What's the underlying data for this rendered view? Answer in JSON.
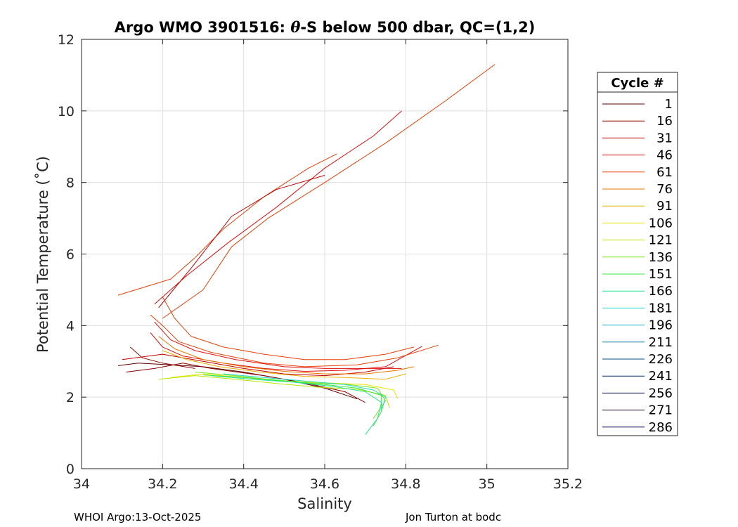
{
  "chart_data": {
    "type": "line",
    "title_prefix": "Argo WMO 3901516: ",
    "title_theta": "θ",
    "title_suffix": "-S below 500 dbar,  QC=(1,2)",
    "xlabel": "Salinity",
    "ylabel": "Potential Temperature (˚C)",
    "xlim": [
      34,
      35.2
    ],
    "ylim": [
      0,
      12
    ],
    "xticks": [
      "34",
      "34.2",
      "34.4",
      "34.6",
      "34.8",
      "35",
      "35.2"
    ],
    "yticks": [
      "0",
      "2",
      "4",
      "6",
      "8",
      "10",
      "12"
    ],
    "grid": true,
    "legend_placement": "outside-right",
    "legend": {
      "title": "Cycle #",
      "entries": [
        {
          "label": "1",
          "color": "#5a0000"
        },
        {
          "label": "16",
          "color": "#8c0000"
        },
        {
          "label": "31",
          "color": "#bf0000"
        },
        {
          "label": "46",
          "color": "#e01010"
        },
        {
          "label": "61",
          "color": "#e8400a"
        },
        {
          "label": "76",
          "color": "#e87800"
        },
        {
          "label": "91",
          "color": "#e8b000"
        },
        {
          "label": "106",
          "color": "#e6e600"
        },
        {
          "label": "121",
          "color": "#b8e600"
        },
        {
          "label": "136",
          "color": "#80e620"
        },
        {
          "label": "151",
          "color": "#40e640"
        },
        {
          "label": "166",
          "color": "#20e690"
        },
        {
          "label": "181",
          "color": "#20d8c0"
        },
        {
          "label": "196",
          "color": "#10b0c8"
        },
        {
          "label": "211",
          "color": "#0a80a8"
        },
        {
          "label": "226",
          "color": "#0a5080"
        },
        {
          "label": "241",
          "color": "#0a2a60"
        },
        {
          "label": "256",
          "color": "#0a0a40"
        },
        {
          "label": "271",
          "color": "#2a0020"
        },
        {
          "label": "286",
          "color": "#000060"
        }
      ]
    },
    "series": [
      {
        "color": "#5a0000",
        "points": [
          [
            34.09,
            2.88
          ],
          [
            34.14,
            2.95
          ],
          [
            34.22,
            2.9
          ],
          [
            34.3,
            2.85
          ],
          [
            34.4,
            2.7
          ],
          [
            34.5,
            2.5
          ],
          [
            34.6,
            2.25
          ],
          [
            34.68,
            1.95
          ]
        ]
      },
      {
        "color": "#8c0000",
        "points": [
          [
            34.11,
            2.7
          ],
          [
            34.18,
            2.8
          ],
          [
            34.25,
            2.95
          ],
          [
            34.32,
            2.8
          ],
          [
            34.45,
            2.6
          ],
          [
            34.55,
            2.4
          ],
          [
            34.65,
            2.15
          ],
          [
            34.7,
            1.85
          ]
        ]
      },
      {
        "color": "#8c0000",
        "points": [
          [
            34.12,
            3.4
          ],
          [
            34.15,
            3.1
          ],
          [
            34.2,
            2.95
          ],
          [
            34.28,
            2.8
          ]
        ]
      },
      {
        "color": "#bf0000",
        "points": [
          [
            34.1,
            3.05
          ],
          [
            34.2,
            3.2
          ],
          [
            34.3,
            3.0
          ],
          [
            34.4,
            2.8
          ],
          [
            34.5,
            2.65
          ],
          [
            34.6,
            2.6
          ],
          [
            34.7,
            2.7
          ],
          [
            34.77,
            2.85
          ]
        ]
      },
      {
        "color": "#e01010",
        "points": [
          [
            34.17,
            3.8
          ],
          [
            34.2,
            3.4
          ],
          [
            34.25,
            3.15
          ],
          [
            34.35,
            2.95
          ],
          [
            34.45,
            2.8
          ],
          [
            34.55,
            2.72
          ],
          [
            34.65,
            2.75
          ],
          [
            34.75,
            2.85
          ],
          [
            34.84,
            3.42
          ]
        ]
      },
      {
        "color": "#e01010",
        "points": [
          [
            34.18,
            4.1
          ],
          [
            34.22,
            3.6
          ],
          [
            34.28,
            3.3
          ],
          [
            34.38,
            3.05
          ],
          [
            34.5,
            2.85
          ],
          [
            34.6,
            2.8
          ],
          [
            34.7,
            2.8
          ],
          [
            34.79,
            2.8
          ]
        ]
      },
      {
        "color": "#e8400a",
        "points": [
          [
            34.17,
            4.3
          ],
          [
            34.2,
            4.0
          ],
          [
            34.24,
            3.55
          ],
          [
            34.32,
            3.25
          ],
          [
            34.45,
            2.95
          ],
          [
            34.55,
            2.85
          ],
          [
            34.68,
            2.9
          ],
          [
            34.78,
            3.1
          ],
          [
            34.88,
            3.45
          ]
        ]
      },
      {
        "color": "#e8400a",
        "points": [
          [
            34.2,
            4.8
          ],
          [
            34.23,
            4.2
          ],
          [
            34.27,
            3.7
          ],
          [
            34.35,
            3.4
          ],
          [
            34.45,
            3.2
          ],
          [
            34.55,
            3.05
          ],
          [
            34.65,
            3.05
          ],
          [
            34.75,
            3.2
          ],
          [
            34.82,
            3.4
          ]
        ]
      },
      {
        "color": "#e87800",
        "points": [
          [
            34.19,
            3.7
          ],
          [
            34.23,
            3.35
          ],
          [
            34.3,
            3.05
          ],
          [
            34.4,
            2.85
          ],
          [
            34.5,
            2.72
          ],
          [
            34.6,
            2.65
          ],
          [
            34.7,
            2.65
          ],
          [
            34.78,
            2.75
          ],
          [
            34.82,
            2.85
          ]
        ]
      },
      {
        "color": "#e8b000",
        "points": [
          [
            34.2,
            3.3
          ],
          [
            34.26,
            3.05
          ],
          [
            34.34,
            2.85
          ],
          [
            34.44,
            2.7
          ],
          [
            34.55,
            2.58
          ],
          [
            34.65,
            2.55
          ],
          [
            34.75,
            2.5
          ],
          [
            34.8,
            2.65
          ]
        ]
      },
      {
        "color": "#e6e600",
        "points": [
          [
            34.22,
            2.55
          ],
          [
            34.3,
            2.65
          ],
          [
            34.4,
            2.55
          ],
          [
            34.5,
            2.45
          ],
          [
            34.6,
            2.4
          ],
          [
            34.7,
            2.35
          ],
          [
            34.77,
            2.2
          ],
          [
            34.78,
            1.95
          ]
        ]
      },
      {
        "color": "#b8e600",
        "points": [
          [
            34.19,
            2.5
          ],
          [
            34.28,
            2.6
          ],
          [
            34.38,
            2.5
          ],
          [
            34.48,
            2.38
          ],
          [
            34.58,
            2.28
          ],
          [
            34.68,
            2.22
          ],
          [
            34.75,
            2.05
          ],
          [
            34.76,
            1.7
          ]
        ]
      },
      {
        "color": "#80e620",
        "points": [
          [
            34.28,
            2.7
          ],
          [
            34.36,
            2.62
          ],
          [
            34.46,
            2.5
          ],
          [
            34.56,
            2.4
          ],
          [
            34.66,
            2.35
          ],
          [
            34.73,
            2.25
          ],
          [
            34.75,
            1.9
          ],
          [
            34.72,
            1.4
          ]
        ]
      },
      {
        "color": "#40e640",
        "points": [
          [
            34.3,
            2.62
          ],
          [
            34.4,
            2.55
          ],
          [
            34.5,
            2.45
          ],
          [
            34.6,
            2.35
          ],
          [
            34.68,
            2.25
          ],
          [
            34.74,
            2.05
          ],
          [
            34.74,
            1.6
          ],
          [
            34.72,
            1.2
          ]
        ]
      },
      {
        "color": "#20e690",
        "points": [
          [
            34.32,
            2.6
          ],
          [
            34.42,
            2.5
          ],
          [
            34.52,
            2.42
          ],
          [
            34.62,
            2.3
          ],
          [
            34.7,
            2.15
          ],
          [
            34.74,
            1.85
          ],
          [
            34.73,
            1.4
          ],
          [
            34.7,
            0.95
          ]
        ]
      },
      {
        "color": "#20d8c0",
        "points": [
          [
            34.35,
            2.65
          ],
          [
            34.45,
            2.55
          ],
          [
            34.55,
            2.45
          ],
          [
            34.65,
            2.35
          ],
          [
            34.72,
            2.2
          ],
          [
            34.75,
            2.0
          ],
          [
            34.74,
            1.6
          ]
        ]
      },
      {
        "color": "#e8400a",
        "points": [
          [
            34.09,
            4.85
          ],
          [
            34.22,
            5.3
          ],
          [
            34.28,
            5.9
          ],
          [
            34.35,
            6.7
          ],
          [
            34.45,
            7.6
          ],
          [
            34.56,
            8.4
          ],
          [
            34.63,
            8.8
          ]
        ]
      },
      {
        "color": "#e01010",
        "points": [
          [
            34.18,
            4.6
          ],
          [
            34.26,
            5.4
          ],
          [
            34.36,
            6.3
          ],
          [
            34.48,
            7.3
          ],
          [
            34.6,
            8.4
          ],
          [
            34.72,
            9.3
          ],
          [
            34.79,
            10.0
          ]
        ]
      },
      {
        "color": "#e8400a",
        "points": [
          [
            34.2,
            4.2
          ],
          [
            34.3,
            5.0
          ],
          [
            34.37,
            6.2
          ],
          [
            34.46,
            7.0
          ],
          [
            34.6,
            8.0
          ],
          [
            34.75,
            9.1
          ],
          [
            34.9,
            10.3
          ],
          [
            35.02,
            11.3
          ]
        ]
      },
      {
        "color": "#bf0000",
        "points": [
          [
            34.19,
            4.5
          ],
          [
            34.27,
            5.6
          ],
          [
            34.37,
            7.05
          ],
          [
            34.48,
            7.8
          ],
          [
            34.6,
            8.2
          ]
        ]
      }
    ]
  },
  "footer": {
    "left": "WHOI Argo:13-Oct-2025",
    "right": "Jon Turton at bodc"
  }
}
